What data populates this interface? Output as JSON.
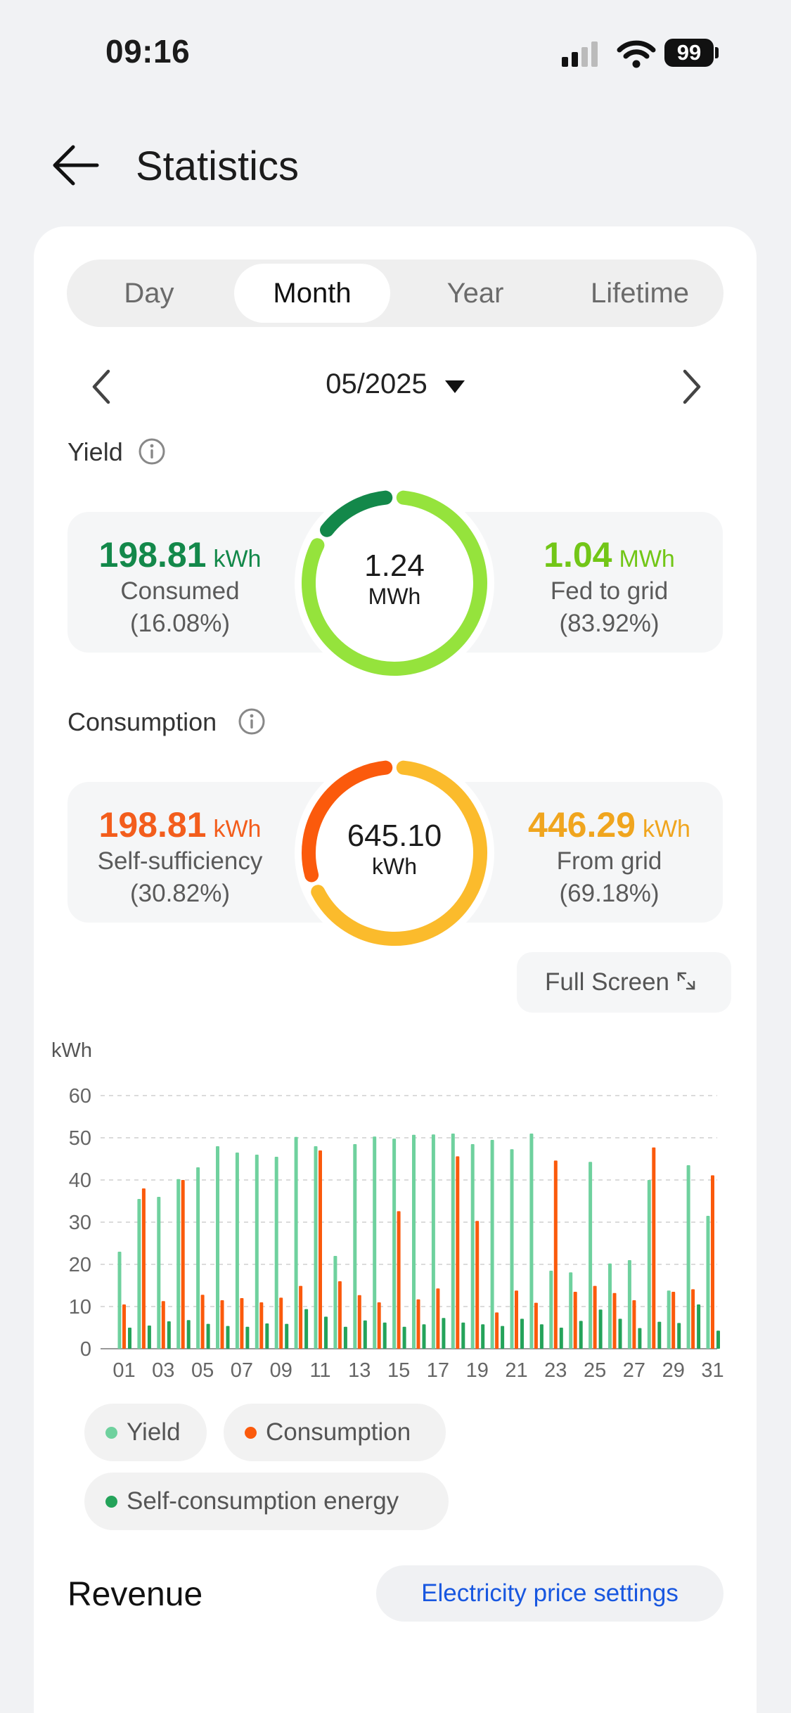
{
  "status_bar": {
    "time": "09:16",
    "battery": "99"
  },
  "header": {
    "title": "Statistics",
    "back_icon": "arrow-left-icon"
  },
  "tabs": [
    {
      "label": "Day",
      "active": false
    },
    {
      "label": "Month",
      "active": true
    },
    {
      "label": "Year",
      "active": false
    },
    {
      "label": "Lifetime",
      "active": false
    }
  ],
  "date_nav": {
    "label": "05/2025"
  },
  "yield": {
    "label": "Yield",
    "total_value": "1.24",
    "total_unit": "MWh",
    "consumed": {
      "value": "198.81",
      "unit": "kWh",
      "label": "Consumed",
      "pct": "(16.08%)",
      "fraction": 0.1608
    },
    "fed": {
      "value": "1.04",
      "unit": "MWh",
      "label": "Fed to grid",
      "pct": "(83.92%)",
      "fraction": 0.8392
    },
    "colors": {
      "consumed": "#13884a",
      "fed": "#95e33c"
    }
  },
  "consumption": {
    "label": "Consumption",
    "total_value": "645.10",
    "total_unit": "kWh",
    "self": {
      "value": "198.81",
      "unit": "kWh",
      "label": "Self-sufficiency",
      "pct": "(30.82%)",
      "fraction": 0.3082
    },
    "grid": {
      "value": "446.29",
      "unit": "kWh",
      "label": "From grid",
      "pct": "(69.18%)",
      "fraction": 0.6918
    },
    "colors": {
      "self": "#fb5a0c",
      "grid": "#fbbb2c"
    }
  },
  "full_screen": {
    "label": "Full Screen"
  },
  "chart_data": {
    "type": "bar",
    "ylabel": "kWh",
    "ylim": [
      0,
      60
    ],
    "yticks": [
      0,
      10,
      20,
      30,
      40,
      50,
      60
    ],
    "grid": true,
    "categories": [
      "01",
      "02",
      "03",
      "04",
      "05",
      "06",
      "07",
      "08",
      "09",
      "10",
      "11",
      "12",
      "13",
      "14",
      "15",
      "16",
      "17",
      "18",
      "19",
      "20",
      "21",
      "22",
      "23",
      "24",
      "25",
      "26",
      "27",
      "28",
      "29",
      "30",
      "31"
    ],
    "xtick_labels": [
      "01",
      "03",
      "05",
      "07",
      "09",
      "11",
      "13",
      "15",
      "17",
      "19",
      "21",
      "23",
      "25",
      "27",
      "29",
      "31"
    ],
    "series": [
      {
        "name": "Yield",
        "color": "#6fd19e",
        "values": [
          23,
          35.5,
          36,
          40.2,
          43,
          48,
          46.5,
          46,
          45.5,
          50.2,
          48,
          22,
          48.5,
          50.3,
          49.8,
          50.7,
          50.8,
          51,
          48.5,
          49.5,
          47.3,
          51,
          18.5,
          18.1,
          44.3,
          20.2,
          21,
          40,
          13.8,
          43.5,
          31.5
        ]
      },
      {
        "name": "Consumption",
        "color": "#fb5a0c",
        "values": [
          10.5,
          38,
          11.3,
          40,
          12.8,
          11.5,
          12,
          11,
          12.1,
          14.9,
          47,
          16,
          12.7,
          11,
          32.6,
          11.7,
          14.3,
          45.6,
          30.3,
          8.6,
          13.8,
          10.9,
          44.6,
          13.5,
          14.9,
          13.2,
          11.5,
          47.7,
          13.5,
          14.1,
          41.1
        ]
      },
      {
        "name": "Self-consumption energy",
        "color": "#24a35a",
        "values": [
          5,
          5.5,
          6.5,
          6.8,
          5.9,
          5.4,
          5.2,
          6,
          5.9,
          9.4,
          7.6,
          5.2,
          6.7,
          6.2,
          5.2,
          5.8,
          7.3,
          6.2,
          5.8,
          5.4,
          7.1,
          5.8,
          5,
          6.6,
          9.3,
          7.1,
          4.9,
          6.4,
          6.1,
          10.5,
          4.3
        ]
      }
    ]
  },
  "legend": [
    {
      "label": "Yield",
      "color": "#6fd19e"
    },
    {
      "label": "Consumption",
      "color": "#fb5a0c"
    },
    {
      "label": "Self-consumption energy",
      "color": "#24a35a"
    }
  ],
  "revenue": {
    "title": "Revenue",
    "price_settings": "Electricity price settings"
  }
}
